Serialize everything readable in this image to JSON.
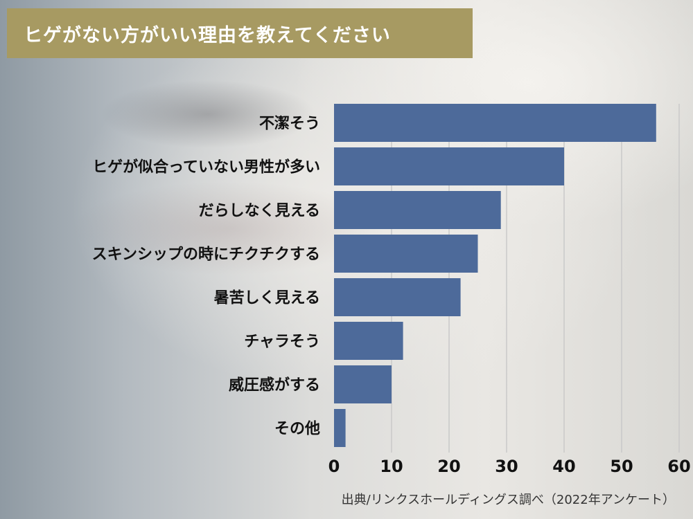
{
  "header": {
    "title": "ヒゲがない方がいい理由を教えてください"
  },
  "footer": {
    "source": "出典/リンクスホールディングス調べ（2022年アンケート）"
  },
  "colors": {
    "bar": "#4d6a9a",
    "title_background": "#a79a62",
    "gridline": "#c9c9c9"
  },
  "chart_data": {
    "type": "bar",
    "orientation": "horizontal",
    "title": "ヒゲがない方がいい理由を教えてください",
    "categories": [
      "不潔そう",
      "ヒゲが似合っていない男性が多い",
      "だらしなく見える",
      "スキンシップの時にチクチクする",
      "暑苦しく見える",
      "チャラそう",
      "威圧感がする",
      "その他"
    ],
    "values": [
      56,
      40,
      29,
      25,
      22,
      12,
      10,
      2
    ],
    "xlim": [
      0,
      60
    ],
    "xticks": [
      "0",
      "10",
      "20",
      "30",
      "40",
      "50",
      "60"
    ],
    "grid": true,
    "legend": "none"
  }
}
